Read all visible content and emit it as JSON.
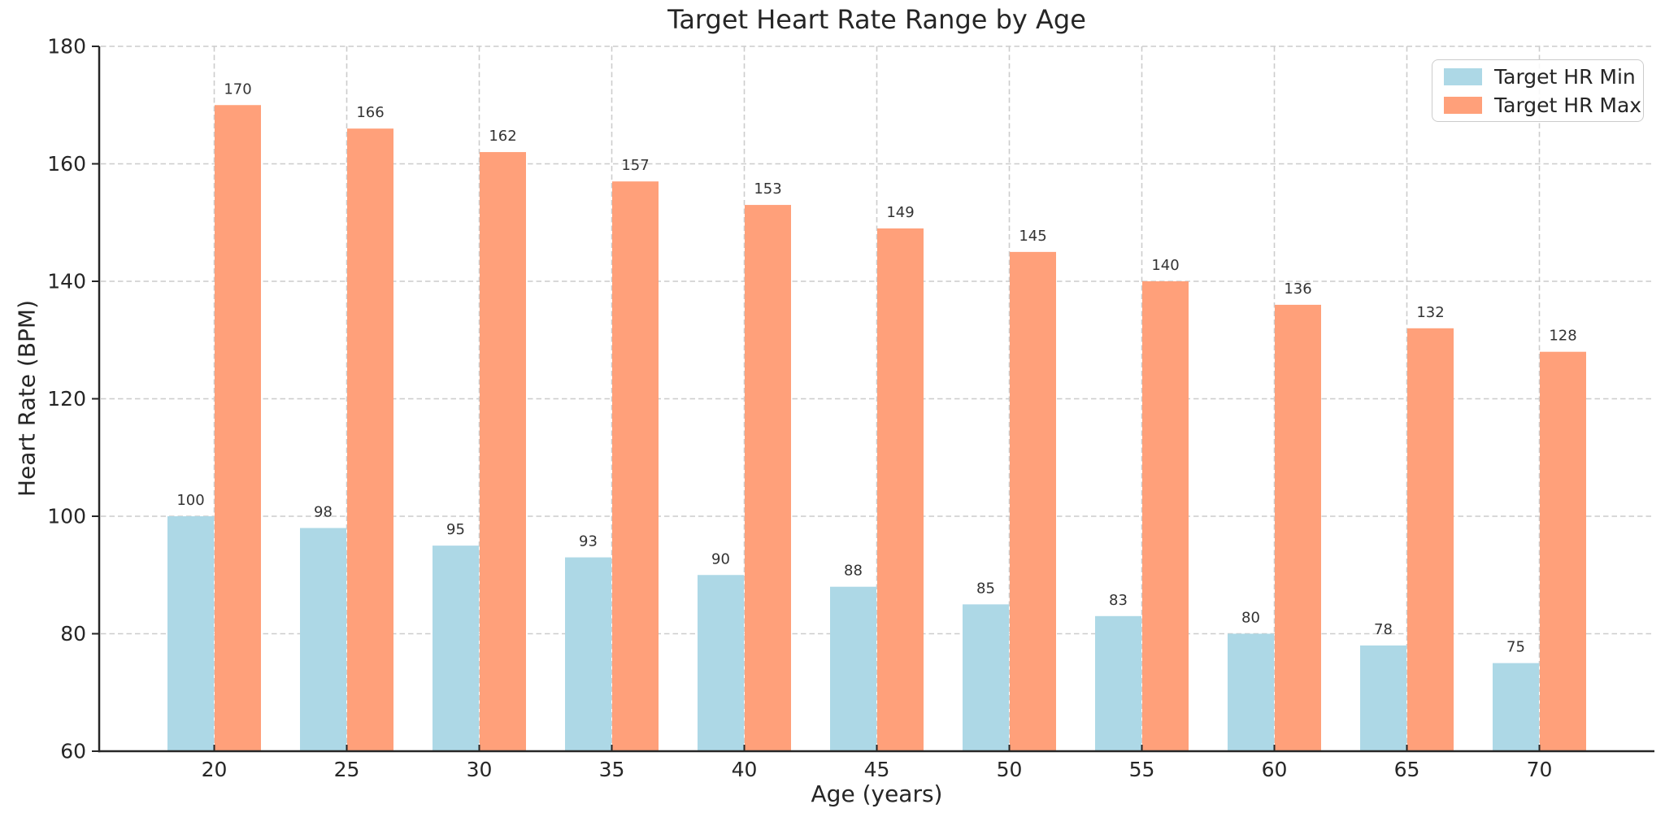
{
  "chart_data": {
    "type": "bar",
    "title": "Target Heart Rate Range by Age",
    "xlabel": "Age (years)",
    "ylabel": "Heart Rate (BPM)",
    "categories": [
      "20",
      "25",
      "30",
      "35",
      "40",
      "45",
      "50",
      "55",
      "60",
      "65",
      "70"
    ],
    "series": [
      {
        "name": "Target HR Min",
        "color": "#ADD8E6",
        "values": [
          100,
          98,
          95,
          93,
          90,
          88,
          85,
          83,
          80,
          78,
          75
        ]
      },
      {
        "name": "Target HR Max",
        "color": "#FFA07A",
        "values": [
          170,
          166,
          162,
          157,
          153,
          149,
          145,
          140,
          136,
          132,
          128
        ]
      }
    ],
    "ylim": [
      60,
      180
    ],
    "yticks": [
      60,
      80,
      100,
      120,
      140,
      160,
      180
    ],
    "grid": true,
    "grid_style": "dashed",
    "legend_position": "upper-right",
    "bar_value_labels": true
  },
  "colors": {
    "hr_min": "#ADD8E6",
    "hr_max": "#FFA07A",
    "text": "#262626",
    "value_label": "#333333",
    "grid": "#cccccc",
    "spine": "#262626",
    "legend_border": "#cccccc",
    "background": "#ffffff"
  }
}
